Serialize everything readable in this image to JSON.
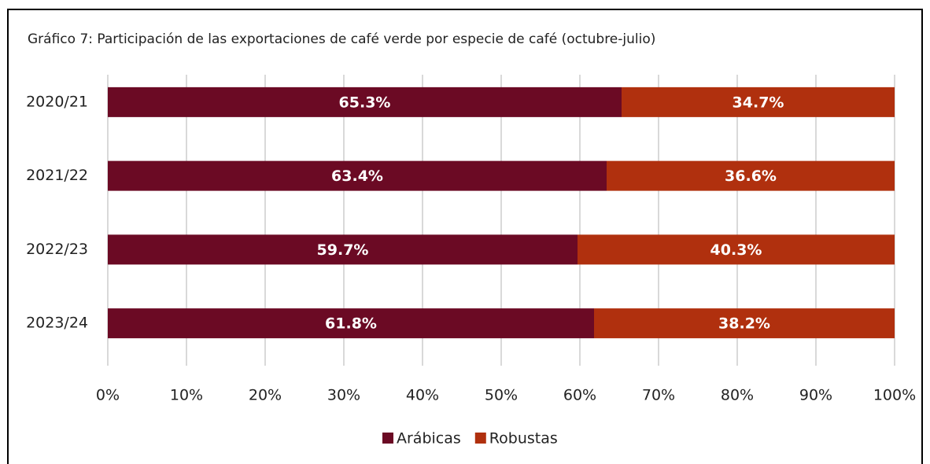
{
  "chart_data": {
    "type": "stacked_barh",
    "title": "Gráfico 7: Participación de las exportaciones de café verde por especie de café (octubre-julio)",
    "categories": [
      "2020/21",
      "2021/22",
      "2022/23",
      "2023/24"
    ],
    "series": [
      {
        "name": "Arábicas",
        "color": "#6b0a24",
        "values": [
          65.3,
          63.4,
          59.7,
          61.8
        ],
        "value_labels": [
          "65.3%",
          "63.4%",
          "59.7%",
          "61.8%"
        ]
      },
      {
        "name": "Robustas",
        "color": "#b0300e",
        "values": [
          34.7,
          36.6,
          40.3,
          38.2
        ],
        "value_labels": [
          "34.7%",
          "36.6%",
          "40.3%",
          "38.2%"
        ]
      }
    ],
    "xlim": [
      0,
      100
    ],
    "xticks": [
      {
        "value": 0,
        "label": "0%"
      },
      {
        "value": 10,
        "label": "10%"
      },
      {
        "value": 20,
        "label": "20%"
      },
      {
        "value": 30,
        "label": "30%"
      },
      {
        "value": 40,
        "label": "40%"
      },
      {
        "value": 50,
        "label": "50%"
      },
      {
        "value": 60,
        "label": "60%"
      },
      {
        "value": 70,
        "label": "70%"
      },
      {
        "value": 80,
        "label": "80%"
      },
      {
        "value": 90,
        "label": "90%"
      },
      {
        "value": 100,
        "label": "100%"
      }
    ],
    "grid": true,
    "legend": "bottom"
  }
}
